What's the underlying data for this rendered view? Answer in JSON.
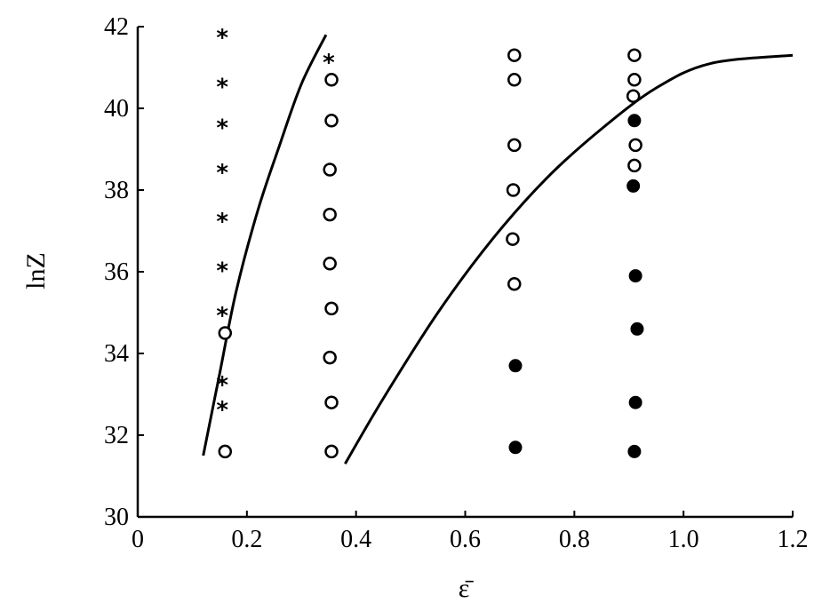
{
  "chart_data": {
    "type": "scatter",
    "title": "",
    "xlabel": "ε̄",
    "ylabel": "lnZ",
    "xlim": [
      0,
      1.2
    ],
    "ylim": [
      30,
      42
    ],
    "xticks": [
      "0",
      "0.2",
      "0.4",
      "0.6",
      "0.8",
      "1.0",
      "1.2"
    ],
    "yticks": [
      "30",
      "32",
      "34",
      "36",
      "38",
      "40",
      "42"
    ],
    "grid": false,
    "legend": "none",
    "series": [
      {
        "marker": "star",
        "points": [
          {
            "x": 0.155,
            "y": 41.8
          },
          {
            "x": 0.155,
            "y": 40.6
          },
          {
            "x": 0.155,
            "y": 39.6
          },
          {
            "x": 0.155,
            "y": 38.5
          },
          {
            "x": 0.155,
            "y": 37.3
          },
          {
            "x": 0.155,
            "y": 36.1
          },
          {
            "x": 0.155,
            "y": 35.0
          },
          {
            "x": 0.155,
            "y": 33.3
          },
          {
            "x": 0.155,
            "y": 32.7
          },
          {
            "x": 0.35,
            "y": 41.2
          }
        ]
      },
      {
        "marker": "open-circle",
        "points": [
          {
            "x": 0.16,
            "y": 34.5
          },
          {
            "x": 0.16,
            "y": 31.6
          },
          {
            "x": 0.355,
            "y": 40.7
          },
          {
            "x": 0.355,
            "y": 39.7
          },
          {
            "x": 0.352,
            "y": 38.5
          },
          {
            "x": 0.352,
            "y": 37.4
          },
          {
            "x": 0.352,
            "y": 36.2
          },
          {
            "x": 0.355,
            "y": 35.1
          },
          {
            "x": 0.352,
            "y": 33.9
          },
          {
            "x": 0.355,
            "y": 32.8
          },
          {
            "x": 0.355,
            "y": 31.6
          },
          {
            "x": 0.69,
            "y": 41.3
          },
          {
            "x": 0.69,
            "y": 40.7
          },
          {
            "x": 0.69,
            "y": 39.1
          },
          {
            "x": 0.688,
            "y": 38.0
          },
          {
            "x": 0.687,
            "y": 36.8
          },
          {
            "x": 0.69,
            "y": 35.7
          },
          {
            "x": 0.91,
            "y": 41.3
          },
          {
            "x": 0.91,
            "y": 40.7
          },
          {
            "x": 0.908,
            "y": 40.3
          },
          {
            "x": 0.912,
            "y": 39.1
          },
          {
            "x": 0.91,
            "y": 38.6
          }
        ]
      },
      {
        "marker": "filled-circle",
        "points": [
          {
            "x": 0.692,
            "y": 33.7
          },
          {
            "x": 0.692,
            "y": 31.7
          },
          {
            "x": 0.91,
            "y": 39.7
          },
          {
            "x": 0.908,
            "y": 38.1
          },
          {
            "x": 0.912,
            "y": 35.9
          },
          {
            "x": 0.915,
            "y": 34.6
          },
          {
            "x": 0.912,
            "y": 32.8
          },
          {
            "x": 0.91,
            "y": 31.6
          }
        ]
      }
    ],
    "curves": [
      {
        "points": [
          {
            "x": 0.12,
            "y": 31.5
          },
          {
            "x": 0.15,
            "y": 33.5
          },
          {
            "x": 0.18,
            "y": 35.5
          },
          {
            "x": 0.22,
            "y": 37.5
          },
          {
            "x": 0.26,
            "y": 39.1
          },
          {
            "x": 0.3,
            "y": 40.6
          },
          {
            "x": 0.345,
            "y": 41.8
          }
        ]
      },
      {
        "points": [
          {
            "x": 0.38,
            "y": 31.3
          },
          {
            "x": 0.45,
            "y": 32.9
          },
          {
            "x": 0.55,
            "y": 35.0
          },
          {
            "x": 0.65,
            "y": 36.8
          },
          {
            "x": 0.75,
            "y": 38.3
          },
          {
            "x": 0.85,
            "y": 39.5
          },
          {
            "x": 0.95,
            "y": 40.5
          },
          {
            "x": 1.05,
            "y": 41.1
          },
          {
            "x": 1.2,
            "y": 41.3
          }
        ]
      }
    ]
  }
}
